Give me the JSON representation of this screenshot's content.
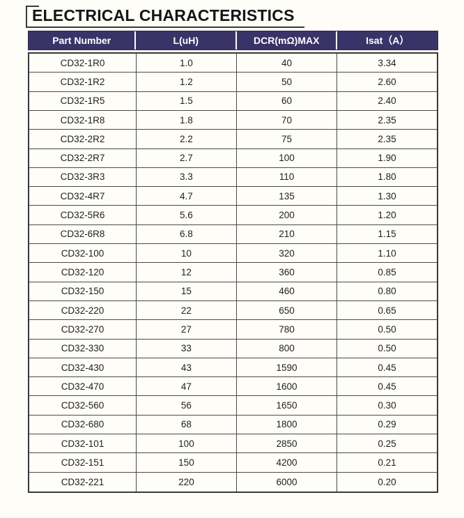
{
  "page": {
    "background_color": "#fffdf7"
  },
  "title": {
    "text": "ELECTRICAL CHARACTERISTICS",
    "text_color": "#151515",
    "bracket_color": "#3a3a3a"
  },
  "table": {
    "header_bg_color": "#3a3367",
    "header_text_color": "#ffffff",
    "border_color": "#4a4a4a",
    "columns": [
      "Part Number",
      "L(uH)",
      "DCR(mΩ)MAX",
      "Isat（A）"
    ],
    "rows": [
      [
        "CD32-1R0",
        "1.0",
        "40",
        "3.34"
      ],
      [
        "CD32-1R2",
        "1.2",
        "50",
        "2.60"
      ],
      [
        "CD32-1R5",
        "1.5",
        "60",
        "2.40"
      ],
      [
        "CD32-1R8",
        "1.8",
        "70",
        "2.35"
      ],
      [
        "CD32-2R2",
        "2.2",
        "75",
        "2.35"
      ],
      [
        "CD32-2R7",
        "2.7",
        "100",
        "1.90"
      ],
      [
        "CD32-3R3",
        "3.3",
        "110",
        "1.80"
      ],
      [
        "CD32-4R7",
        "4.7",
        "135",
        "1.30"
      ],
      [
        "CD32-5R6",
        "5.6",
        "200",
        "1.20"
      ],
      [
        "CD32-6R8",
        "6.8",
        "210",
        "1.15"
      ],
      [
        "CD32-100",
        "10",
        "320",
        "1.10"
      ],
      [
        "CD32-120",
        "12",
        "360",
        "0.85"
      ],
      [
        "CD32-150",
        "15",
        "460",
        "0.80"
      ],
      [
        "CD32-220",
        "22",
        "650",
        "0.65"
      ],
      [
        "CD32-270",
        "27",
        "780",
        "0.50"
      ],
      [
        "CD32-330",
        "33",
        "800",
        "0.50"
      ],
      [
        "CD32-430",
        "43",
        "1590",
        "0.45"
      ],
      [
        "CD32-470",
        "47",
        "1600",
        "0.45"
      ],
      [
        "CD32-560",
        "56",
        "1650",
        "0.30"
      ],
      [
        "CD32-680",
        "68",
        "1800",
        "0.29"
      ],
      [
        "CD32-101",
        "100",
        "2850",
        "0.25"
      ],
      [
        "CD32-151",
        "150",
        "4200",
        "0.21"
      ],
      [
        "CD32-221",
        "220",
        "6000",
        "0.20"
      ]
    ]
  }
}
